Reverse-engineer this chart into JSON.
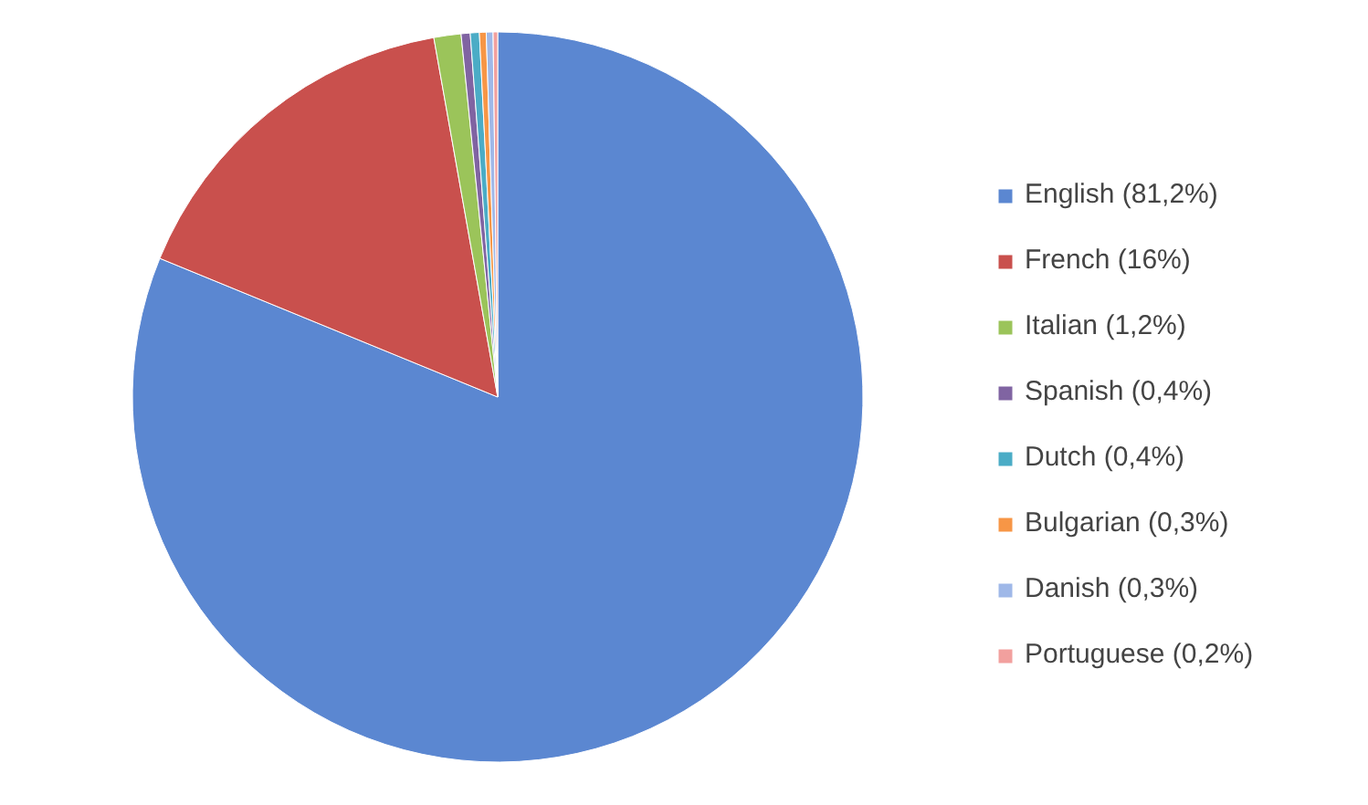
{
  "chart_data": {
    "type": "pie",
    "categories": [
      "English (81,2%)",
      "French (16%)",
      "Italian (1,2%)",
      "Spanish (0,4%)",
      "Dutch (0,4%)",
      "Bulgarian (0,3%)",
      "Danish (0,3%)",
      "Portuguese (0,2%)"
    ],
    "values": [
      81.2,
      16,
      1.2,
      0.4,
      0.4,
      0.3,
      0.3,
      0.2
    ],
    "colors": [
      "#5b87d1",
      "#c9504d",
      "#9bc45a",
      "#8064a2",
      "#4bacc6",
      "#f79646",
      "#9fb8e8",
      "#f2a09e"
    ],
    "legend": "right"
  }
}
